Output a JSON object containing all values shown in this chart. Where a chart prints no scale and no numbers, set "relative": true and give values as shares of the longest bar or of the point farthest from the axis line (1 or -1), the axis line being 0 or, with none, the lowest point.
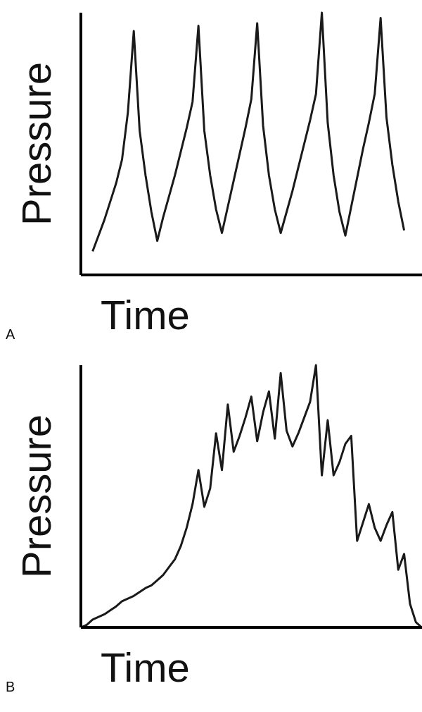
{
  "chart_data": [
    {
      "type": "line",
      "relative": true,
      "ylabel": "Pressure",
      "xlabel": "Time",
      "annotations": [
        "A"
      ],
      "marker": "none",
      "grid": false,
      "legend": false,
      "color": "#1a1a1a",
      "categories": [
        null,
        null,
        null,
        null,
        null,
        null,
        null,
        null,
        null,
        null,
        null,
        null,
        null,
        null,
        null,
        null,
        null,
        null,
        null,
        null,
        null,
        null,
        null,
        null,
        null,
        null,
        null,
        null,
        null,
        null,
        null,
        null,
        null,
        null,
        null,
        null,
        null,
        null,
        null,
        null,
        null,
        null,
        null,
        null,
        null,
        null,
        null,
        null,
        null,
        null,
        null,
        null,
        null,
        null,
        null,
        null,
        null,
        null,
        null,
        null
      ],
      "values": [
        null,
        null,
        0.09,
        0.15,
        0.21,
        0.28,
        0.35,
        0.44,
        0.62,
        0.93,
        0.55,
        0.38,
        0.24,
        0.13,
        0.22,
        0.3,
        0.38,
        0.47,
        0.56,
        0.66,
        0.95,
        0.55,
        0.38,
        0.25,
        0.16,
        0.26,
        0.36,
        0.46,
        0.56,
        0.67,
        0.96,
        0.57,
        0.38,
        0.25,
        0.16,
        0.24,
        0.32,
        0.41,
        0.5,
        0.59,
        0.69,
        1.0,
        0.58,
        0.38,
        0.24,
        0.15,
        0.26,
        0.37,
        0.48,
        0.58,
        0.69,
        0.98,
        0.6,
        0.42,
        0.28,
        0.17,
        null,
        null,
        null,
        null
      ]
    },
    {
      "type": "line",
      "relative": true,
      "ylabel": "Pressure",
      "xlabel": "Time",
      "annotations": [
        "B"
      ],
      "marker": "none",
      "grid": false,
      "legend": false,
      "color": "#1a1a1a",
      "categories": [
        null,
        null,
        null,
        null,
        null,
        null,
        null,
        null,
        null,
        null,
        null,
        null,
        null,
        null,
        null,
        null,
        null,
        null,
        null,
        null,
        null,
        null,
        null,
        null,
        null,
        null,
        null,
        null,
        null,
        null,
        null,
        null,
        null,
        null,
        null,
        null,
        null,
        null,
        null,
        null,
        null,
        null,
        null,
        null,
        null,
        null,
        null,
        null,
        null,
        null,
        null,
        null,
        null,
        null,
        null,
        null,
        null,
        null,
        null,
        null
      ],
      "values": [
        0.0,
        0.01,
        0.03,
        0.04,
        0.05,
        0.065,
        0.08,
        0.1,
        0.11,
        0.12,
        0.135,
        0.15,
        0.16,
        0.18,
        0.2,
        0.23,
        0.26,
        0.31,
        0.38,
        0.47,
        0.6,
        0.46,
        0.53,
        0.74,
        0.6,
        0.85,
        0.67,
        0.73,
        0.8,
        0.88,
        0.71,
        0.82,
        0.9,
        0.72,
        0.97,
        0.75,
        0.69,
        0.74,
        0.8,
        0.86,
        1.0,
        0.58,
        0.79,
        0.58,
        0.63,
        0.7,
        0.73,
        0.33,
        0.4,
        0.47,
        0.38,
        0.33,
        0.39,
        0.44,
        0.22,
        0.28,
        0.09,
        0.02,
        0.0,
        null
      ]
    }
  ]
}
